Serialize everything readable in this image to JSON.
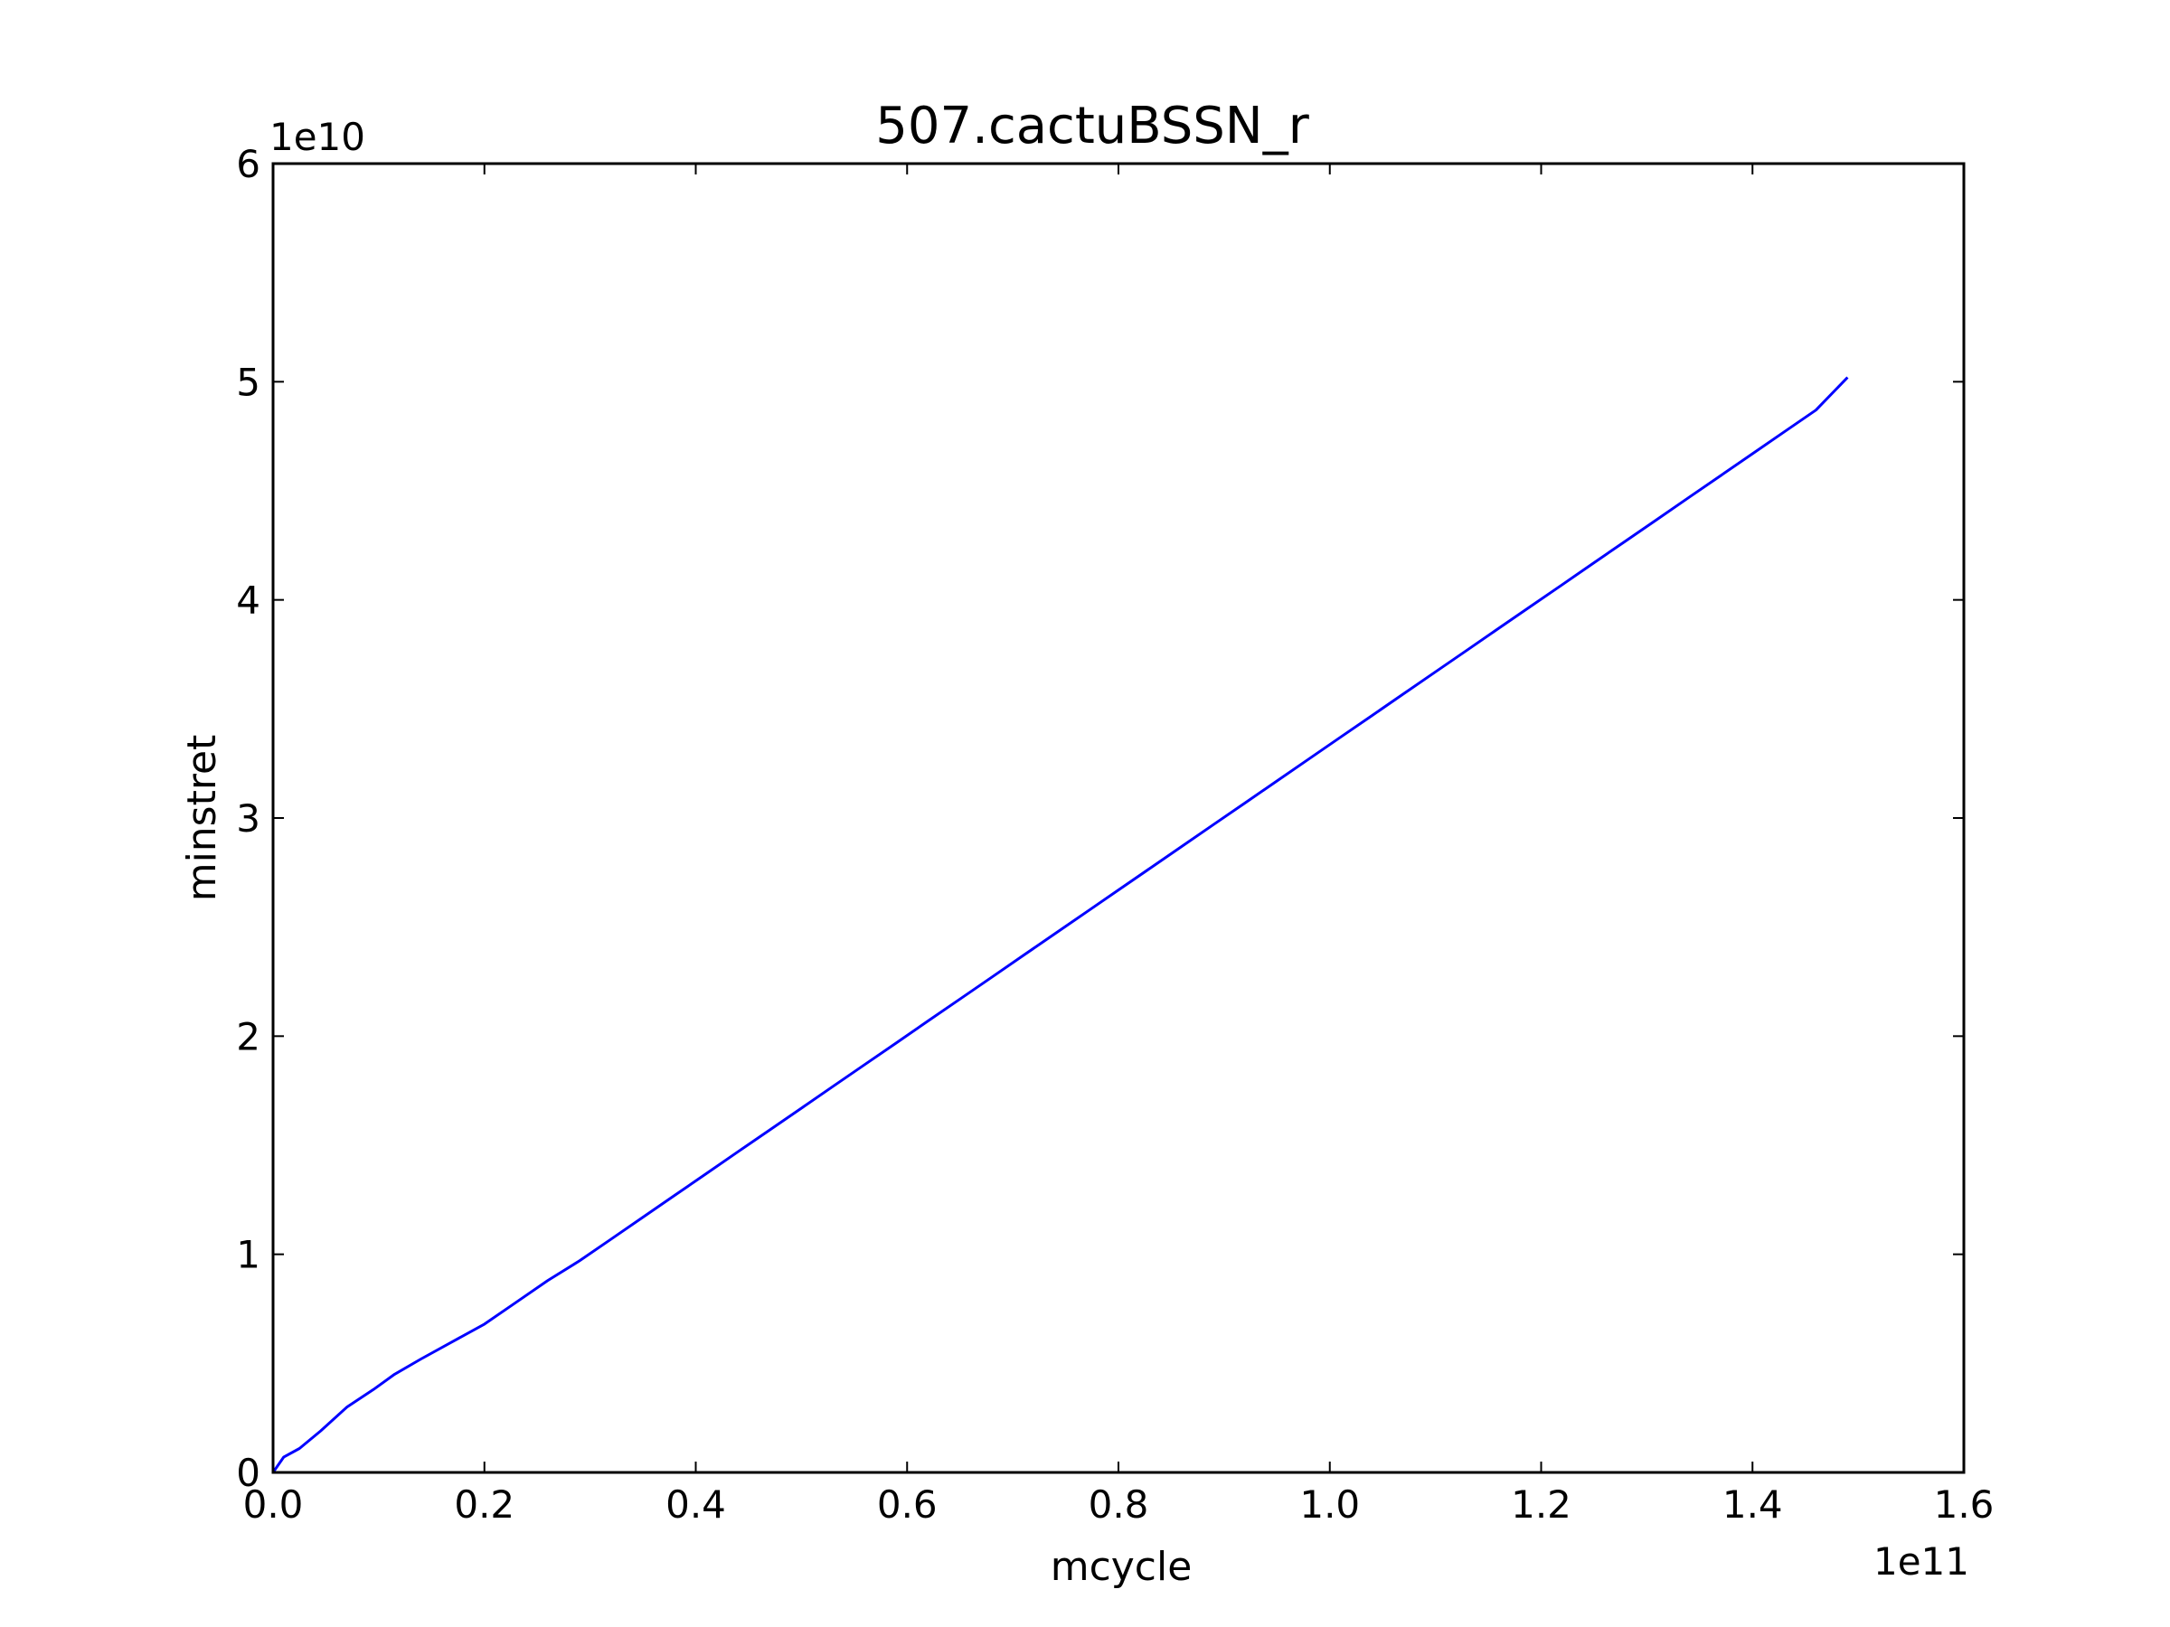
{
  "chart_data": {
    "type": "line",
    "title": "507.cactuBSSN_r",
    "xlabel": "mcycle",
    "ylabel": "minstret",
    "x_offset_label": "1e11",
    "y_offset_label": "1e10",
    "xlim": [
      0.0,
      1.6
    ],
    "ylim": [
      0,
      6
    ],
    "x_ticks": [
      0.0,
      0.2,
      0.4,
      0.6,
      0.8,
      1.0,
      1.2,
      1.4,
      1.6
    ],
    "x_tick_labels": [
      "0.0",
      "0.2",
      "0.4",
      "0.6",
      "0.8",
      "1.0",
      "1.2",
      "1.4",
      "1.6"
    ],
    "y_ticks": [
      0,
      1,
      2,
      3,
      4,
      5,
      6
    ],
    "y_tick_labels": [
      "0",
      "1",
      "2",
      "3",
      "4",
      "5",
      "6"
    ],
    "grid": false,
    "line_color": "#0000ff",
    "series": [
      {
        "x": [
          0.0,
          0.01,
          0.025,
          0.045,
          0.07,
          0.095,
          0.115,
          0.14,
          0.17,
          0.2,
          0.23,
          0.26,
          0.29,
          0.32,
          0.35,
          0.38,
          0.41,
          0.44,
          0.47,
          0.5,
          0.53,
          0.56,
          0.59,
          0.62,
          0.65,
          0.68,
          0.71,
          0.74,
          0.77,
          0.8,
          0.83,
          0.86,
          0.89,
          0.92,
          0.95,
          0.98,
          1.01,
          1.04,
          1.07,
          1.1,
          1.13,
          1.16,
          1.19,
          1.22,
          1.25,
          1.28,
          1.31,
          1.34,
          1.37,
          1.4,
          1.43,
          1.46,
          1.49
        ],
        "y": [
          0.0,
          0.07,
          0.11,
          0.19,
          0.3,
          0.38,
          0.45,
          0.52,
          0.6,
          0.68,
          0.78,
          0.88,
          0.97,
          1.07,
          1.17,
          1.27,
          1.37,
          1.47,
          1.57,
          1.67,
          1.77,
          1.87,
          1.97,
          2.07,
          2.17,
          2.27,
          2.37,
          2.47,
          2.57,
          2.67,
          2.77,
          2.87,
          2.97,
          3.07,
          3.17,
          3.27,
          3.37,
          3.47,
          3.57,
          3.67,
          3.77,
          3.87,
          3.97,
          4.07,
          4.17,
          4.27,
          4.37,
          4.47,
          4.57,
          4.67,
          4.77,
          4.87,
          5.02
        ]
      }
    ]
  }
}
